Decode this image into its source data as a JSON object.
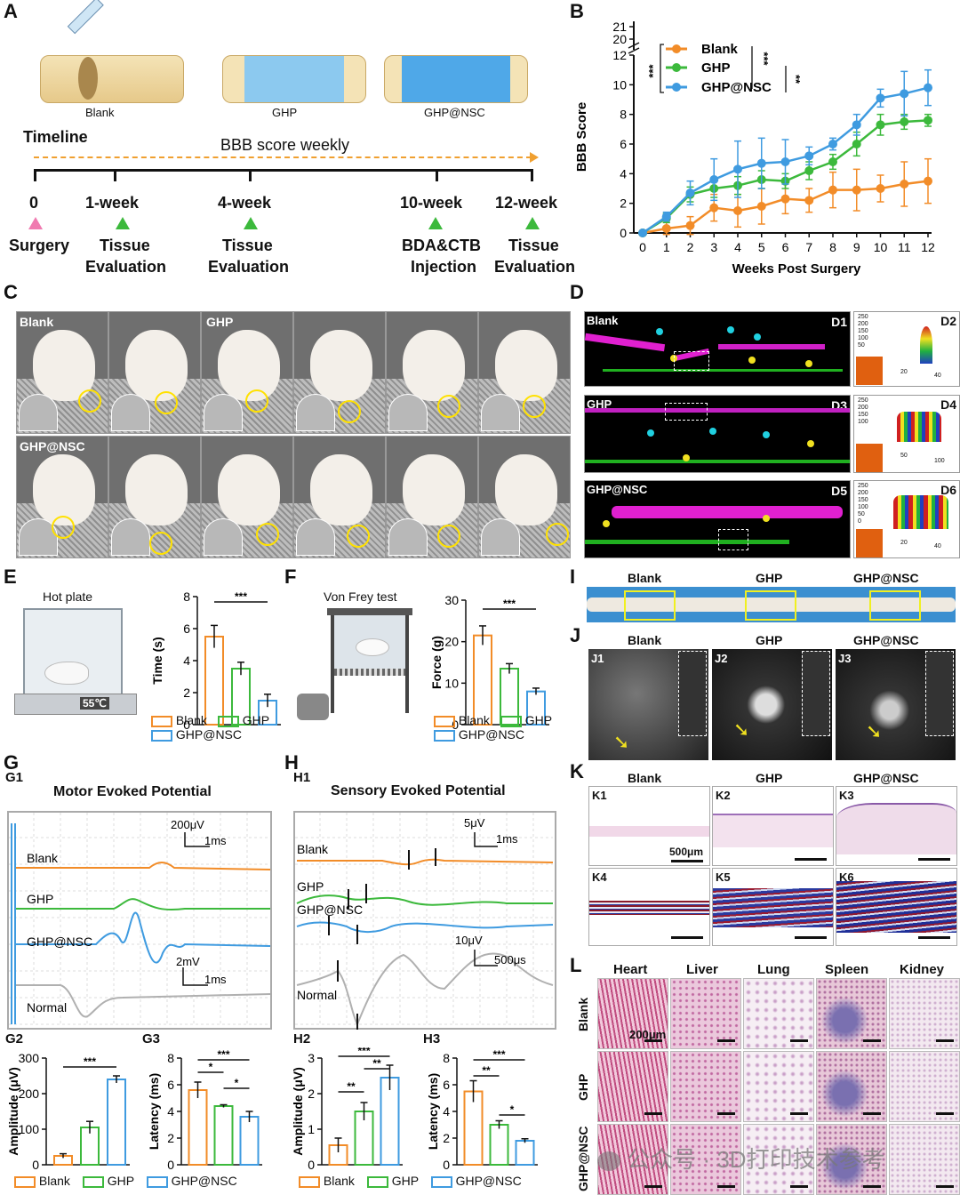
{
  "panels": {
    "A": "A",
    "B": "B",
    "C": "C",
    "D": "D",
    "E": "E",
    "F": "F",
    "G": "G",
    "H": "H",
    "I": "I",
    "J": "J",
    "K": "K",
    "L": "L"
  },
  "panel_a": {
    "implants": [
      "Blank",
      "GHP",
      "GHP@NSC"
    ],
    "timeline_title": "Timeline",
    "timeline_caption": "BBB score weekly",
    "milestones": [
      {
        "time": "0",
        "event1": "Surgery",
        "event2": ""
      },
      {
        "time": "1-week",
        "event1": "Tissue",
        "event2": "Evaluation"
      },
      {
        "time": "4-week",
        "event1": "Tissue",
        "event2": "Evaluation"
      },
      {
        "time": "10-week",
        "event1": "BDA&CTB",
        "event2": "Injection"
      },
      {
        "time": "12-week",
        "event1": "Tissue",
        "event2": "Evaluation"
      }
    ]
  },
  "panel_c": {
    "labels": [
      "Blank",
      "GHP",
      "GHP@NSC"
    ]
  },
  "panel_d": {
    "row_labels": [
      "Blank",
      "GHP",
      "GHP@NSC"
    ],
    "sub": [
      "D1",
      "D2",
      "D3",
      "D4",
      "D5",
      "D6"
    ],
    "axis_ticks": {
      "z": [
        "250",
        "200",
        "150",
        "100",
        "50",
        "0"
      ],
      "xy1": [
        "20",
        "40"
      ],
      "xy2": [
        "50",
        "100"
      ],
      "xy3": [
        "20",
        "40"
      ]
    }
  },
  "panel_e": {
    "title": "Hot plate",
    "temp": "55℃"
  },
  "panel_f": {
    "title": "Von Frey test"
  },
  "panel_g": {
    "sub": "G1",
    "title": "Motor Evoked Potential",
    "scale1_v": "200μV",
    "scale1_t": "1ms",
    "scale2_v": "2mV",
    "scale2_t": "1ms",
    "traces": [
      "Blank",
      "GHP",
      "GHP@NSC",
      "Normal"
    ],
    "sub2": "G2",
    "sub3": "G3"
  },
  "panel_h": {
    "sub": "H1",
    "title": "Sensory Evoked Potential",
    "scale1_v": "5μV",
    "scale1_t": "1ms",
    "scale2_v": "10μV",
    "scale2_t": "500μs",
    "traces": [
      "Blank",
      "GHP",
      "GHP@NSC",
      "Normal"
    ],
    "sub2": "H2",
    "sub3": "H3"
  },
  "panel_i": {
    "labels": [
      "Blank",
      "GHP",
      "GHP@NSC"
    ]
  },
  "panel_j": {
    "labels": [
      "Blank",
      "GHP",
      "GHP@NSC"
    ],
    "sub": [
      "J1",
      "J2",
      "J3"
    ]
  },
  "panel_k": {
    "labels": [
      "Blank",
      "GHP",
      "GHP@NSC"
    ],
    "sub": [
      "K1",
      "K2",
      "K3",
      "K4",
      "K5",
      "K6"
    ],
    "scale": "500μm"
  },
  "panel_l": {
    "organs": [
      "Heart",
      "Liver",
      "Lung",
      "Spleen",
      "Kidney"
    ],
    "rows": [
      "Blank",
      "GHP",
      "GHP@NSC"
    ],
    "scale": "200μm"
  },
  "watermark": "公众号 · 3D打印技术参考",
  "colors": {
    "blank": "#f28c28",
    "ghp": "#3cb93c",
    "ghpnsc": "#3f9be0",
    "normal": "#b0b0b0"
  },
  "chart_data": [
    {
      "id": "B",
      "type": "line",
      "title": "",
      "xlabel": "Weeks Post Surgery",
      "ylabel": "BBB Score",
      "x": [
        0,
        1,
        2,
        3,
        4,
        5,
        6,
        7,
        8,
        9,
        10,
        11,
        12
      ],
      "ylim": [
        0,
        12
      ],
      "yticks": [
        "0",
        "2",
        "4",
        "6",
        "8",
        "10",
        "12"
      ],
      "ybreak_ticks": [
        "20",
        "21"
      ],
      "series": [
        {
          "name": "Blank",
          "values": [
            0,
            0.3,
            0.5,
            1.7,
            1.5,
            1.8,
            2.3,
            2.2,
            2.9,
            2.9,
            3.0,
            3.3,
            3.5
          ],
          "err": [
            0,
            0.4,
            0.6,
            0.9,
            1.1,
            1.2,
            1.0,
            0.8,
            1.2,
            1.4,
            0.9,
            1.5,
            1.5
          ]
        },
        {
          "name": "GHP",
          "values": [
            0,
            1.0,
            2.6,
            3.0,
            3.2,
            3.6,
            3.5,
            4.2,
            4.8,
            6.0,
            7.3,
            7.5,
            7.6
          ],
          "err": [
            0,
            0.3,
            0.5,
            0.6,
            0.6,
            0.6,
            0.5,
            0.6,
            0.5,
            0.8,
            0.7,
            0.5,
            0.4
          ]
        },
        {
          "name": "GHP@NSC",
          "values": [
            0,
            1.1,
            2.7,
            3.6,
            4.3,
            4.7,
            4.8,
            5.2,
            6.0,
            7.3,
            9.1,
            9.4,
            9.8
          ],
          "err": [
            0,
            0.3,
            0.8,
            1.4,
            1.9,
            1.7,
            1.5,
            0.6,
            0.4,
            0.7,
            0.6,
            1.5,
            1.2
          ]
        }
      ],
      "sig": [
        "***",
        "***",
        "**"
      ]
    },
    {
      "id": "E",
      "type": "bar",
      "ylabel": "Time (s)",
      "categories": [
        "Blank",
        "GHP",
        "GHP@NSC"
      ],
      "values": [
        5.5,
        3.5,
        1.5
      ],
      "err": [
        0.7,
        0.4,
        0.4
      ],
      "ylim": [
        0,
        8
      ],
      "yticks": [
        "0",
        "2",
        "4",
        "6",
        "8"
      ],
      "sig": [
        "***"
      ]
    },
    {
      "id": "F",
      "type": "bar",
      "ylabel": "Force (g)",
      "categories": [
        "Blank",
        "GHP",
        "GHP@NSC"
      ],
      "values": [
        21.5,
        13.5,
        8.0
      ],
      "err": [
        2.3,
        1.2,
        0.8
      ],
      "ylim": [
        0,
        30
      ],
      "yticks": [
        "0",
        "10",
        "20",
        "30"
      ],
      "sig": [
        "***"
      ]
    },
    {
      "id": "G2",
      "type": "bar",
      "ylabel": "Amplitude (μV)",
      "categories": [
        "Blank",
        "GHP",
        "GHP@NSC"
      ],
      "values": [
        25,
        105,
        240
      ],
      "err": [
        6,
        17,
        10
      ],
      "ylim": [
        0,
        300
      ],
      "yticks": [
        "0",
        "100",
        "200",
        "300"
      ],
      "sig": [
        "***"
      ]
    },
    {
      "id": "G3",
      "type": "bar",
      "ylabel": "Latency (ms)",
      "categories": [
        "Blank",
        "GHP",
        "GHP@NSC"
      ],
      "values": [
        5.6,
        4.4,
        3.6
      ],
      "err": [
        0.6,
        0.1,
        0.4
      ],
      "ylim": [
        0,
        8
      ],
      "yticks": [
        "0",
        "2",
        "4",
        "6",
        "8"
      ],
      "sig": [
        "*",
        "***",
        "*"
      ]
    },
    {
      "id": "H2",
      "type": "bar",
      "ylabel": "Amplitude (μV)",
      "categories": [
        "Blank",
        "GHP",
        "GHP@NSC"
      ],
      "values": [
        0.55,
        1.5,
        2.45
      ],
      "err": [
        0.2,
        0.25,
        0.35
      ],
      "ylim": [
        0,
        3
      ],
      "yticks": [
        "0",
        "1",
        "2",
        "3"
      ],
      "sig": [
        "**",
        "***",
        "**"
      ]
    },
    {
      "id": "H3",
      "type": "bar",
      "ylabel": "Latency (ms)",
      "categories": [
        "Blank",
        "GHP",
        "GHP@NSC"
      ],
      "values": [
        5.5,
        3.0,
        1.8
      ],
      "err": [
        0.8,
        0.3,
        0.15
      ],
      "ylim": [
        0,
        8
      ],
      "yticks": [
        "0",
        "2",
        "4",
        "6",
        "8"
      ],
      "sig": [
        "**",
        "***",
        "*"
      ]
    }
  ]
}
